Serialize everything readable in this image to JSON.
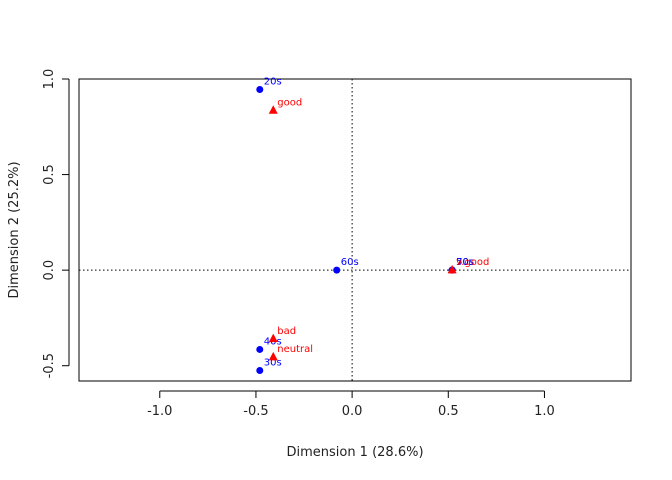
{
  "chart_data": {
    "type": "scatter",
    "title": "",
    "xlabel": "Dimension 1 (28.6%)",
    "ylabel": "Dimension 2 (25.2%)",
    "xlim": [
      -1.42,
      1.45
    ],
    "ylim": [
      -0.58,
      1.0
    ],
    "x_ticks": [
      -1.0,
      -0.5,
      0.0,
      0.5,
      1.0
    ],
    "x_tick_labels": [
      "-1.0",
      "-0.5",
      "0.0",
      "0.5",
      "1.0"
    ],
    "y_ticks": [
      -0.5,
      0.0,
      0.5,
      1.0
    ],
    "y_tick_labels": [
      "-0.5",
      "0.0",
      "0.5",
      "1.0"
    ],
    "reference_lines": {
      "x": 0,
      "y": 0,
      "style": "dotted"
    },
    "grid": false,
    "series": [
      {
        "color": "#0000ff",
        "marker": "circle",
        "points": [
          {
            "label": "20s",
            "x": -0.48,
            "y": 0.945
          },
          {
            "label": "30s",
            "x": -0.48,
            "y": -0.525
          },
          {
            "label": "40s",
            "x": -0.48,
            "y": -0.415
          },
          {
            "label": "50s",
            "x": 0.52,
            "y": 0.0
          },
          {
            "label": "60s",
            "x": -0.08,
            "y": 0.0
          },
          {
            "label": "70s",
            "x": 0.52,
            "y": 0.0
          }
        ]
      },
      {
        "color": "#ff0000",
        "marker": "triangle",
        "points": [
          {
            "label": "good",
            "x": -0.41,
            "y": 0.835
          },
          {
            "label": "bad",
            "x": -0.41,
            "y": -0.36
          },
          {
            "label": "neutral",
            "x": -0.41,
            "y": -0.455
          },
          {
            "label": "v.good",
            "x": 0.52,
            "y": 0.0
          }
        ]
      }
    ]
  }
}
